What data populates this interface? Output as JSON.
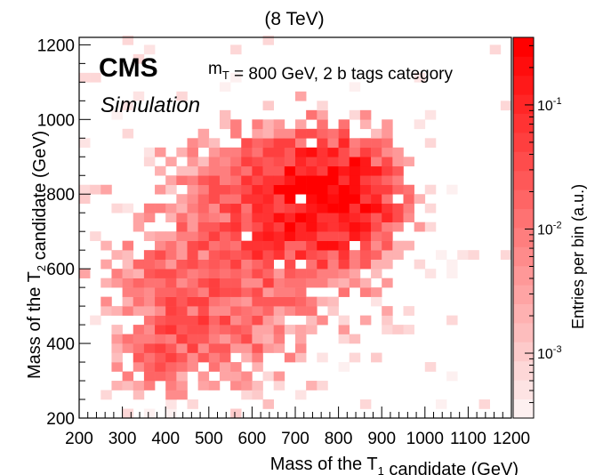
{
  "chart_data": {
    "type": "heatmap",
    "title": "(8 TeV)",
    "experiment": "CMS",
    "status": "Simulation",
    "annotation": "m_T = 800 GeV, 2 b tags category",
    "xlabel": "Mass of the T_1 candidate (GeV)",
    "ylabel": "Mass of the T_2 candidate (GeV)",
    "zlabel": "Entries per bin (a.u.)",
    "xlim": [
      200,
      1200
    ],
    "ylim": [
      200,
      1220
    ],
    "zlim": [
      0.0003,
      0.35
    ],
    "zscale": "log",
    "bin_width": 25,
    "x_ticks": [
      200,
      300,
      400,
      500,
      600,
      700,
      800,
      900,
      1000,
      1100,
      1200
    ],
    "y_ticks": [
      200,
      400,
      600,
      800,
      1000,
      1200
    ],
    "z_ticks": [
      {
        "value": 0.1,
        "base": "10",
        "exp": "-1"
      },
      {
        "value": 0.01,
        "base": "10",
        "exp": "-2"
      },
      {
        "value": 0.001,
        "base": "10",
        "exp": "-3"
      }
    ],
    "colors": {
      "low": "#fdf0f0",
      "high": "#ff0000",
      "axis": "#000000"
    },
    "blobs": [
      {
        "x": 775,
        "y": 790,
        "sx": 65,
        "sy": 65,
        "peak": 0.3
      },
      {
        "x": 700,
        "y": 770,
        "sx": 110,
        "sy": 105,
        "peak": 0.045
      },
      {
        "x": 480,
        "y": 500,
        "sx": 95,
        "sy": 110,
        "peak": 0.018
      },
      {
        "x": 560,
        "y": 620,
        "sx": 180,
        "sy": 180,
        "peak": 0.006
      },
      {
        "x": 380,
        "y": 380,
        "sx": 60,
        "sy": 50,
        "peak": 0.008
      }
    ],
    "occupancy": 0.72
  }
}
